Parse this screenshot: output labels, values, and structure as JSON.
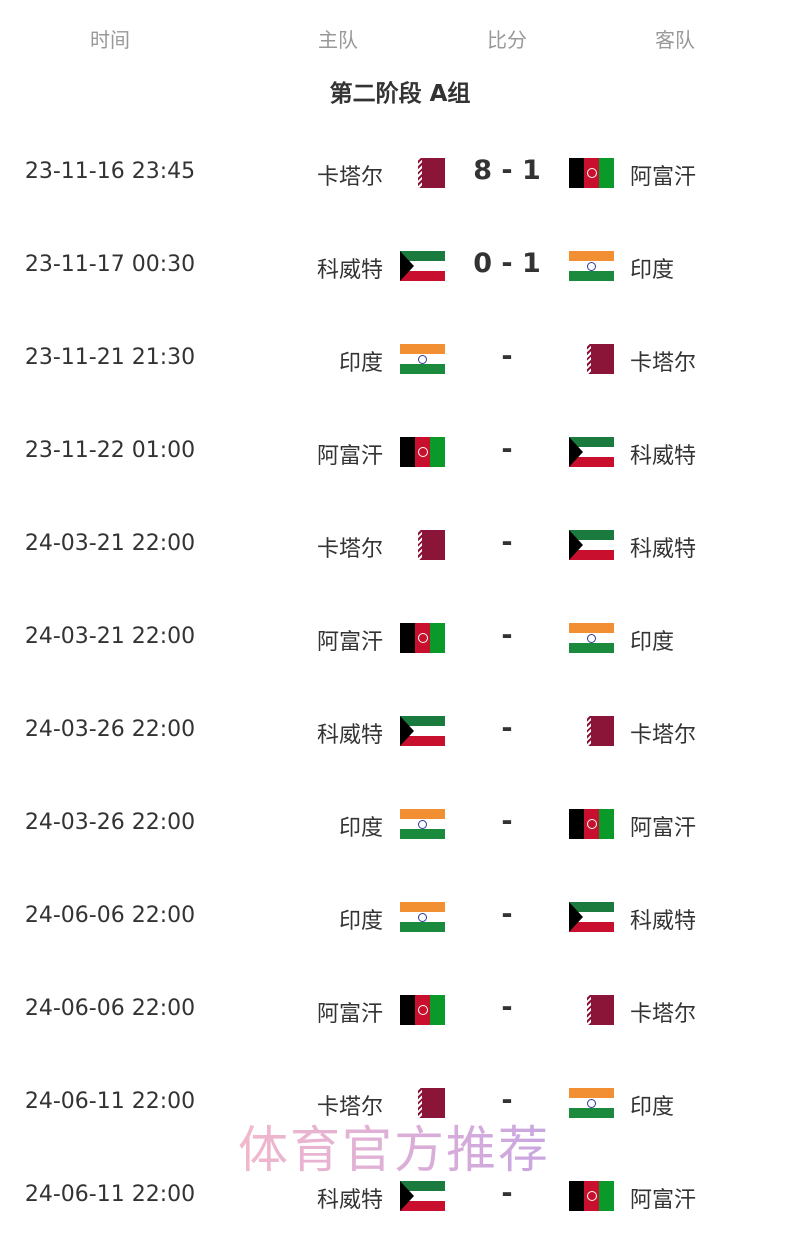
{
  "headers": {
    "time": "时间",
    "home": "主队",
    "score": "比分",
    "away": "客队"
  },
  "group_title": "第二阶段 A组",
  "flag_colors": {
    "qatar": "#8a1538",
    "afghanistan": [
      "#000000",
      "#c8102e",
      "#0a9a2a"
    ],
    "kuwait": [
      "#1b7a3d",
      "#ffffff",
      "#c8102e",
      "#000000"
    ],
    "india": [
      "#f28f33",
      "#ffffff",
      "#1c8a3c"
    ]
  },
  "matches": [
    {
      "time": "23-11-16 23:45",
      "home": "卡塔尔",
      "home_flag": "qat",
      "score": "8 - 1",
      "away": "阿富汗",
      "away_flag": "afg"
    },
    {
      "time": "23-11-17 00:30",
      "home": "科威特",
      "home_flag": "kuw",
      "score": "0 - 1",
      "away": "印度",
      "away_flag": "ind"
    },
    {
      "time": "23-11-21 21:30",
      "home": "印度",
      "home_flag": "ind",
      "score": "-",
      "away": "卡塔尔",
      "away_flag": "qat"
    },
    {
      "time": "23-11-22 01:00",
      "home": "阿富汗",
      "home_flag": "afg",
      "score": "-",
      "away": "科威特",
      "away_flag": "kuw"
    },
    {
      "time": "24-03-21 22:00",
      "home": "卡塔尔",
      "home_flag": "qat",
      "score": "-",
      "away": "科威特",
      "away_flag": "kuw"
    },
    {
      "time": "24-03-21 22:00",
      "home": "阿富汗",
      "home_flag": "afg",
      "score": "-",
      "away": "印度",
      "away_flag": "ind"
    },
    {
      "time": "24-03-26 22:00",
      "home": "科威特",
      "home_flag": "kuw",
      "score": "-",
      "away": "卡塔尔",
      "away_flag": "qat"
    },
    {
      "time": "24-03-26 22:00",
      "home": "印度",
      "home_flag": "ind",
      "score": "-",
      "away": "阿富汗",
      "away_flag": "afg"
    },
    {
      "time": "24-06-06 22:00",
      "home": "印度",
      "home_flag": "ind",
      "score": "-",
      "away": "科威特",
      "away_flag": "kuw"
    },
    {
      "time": "24-06-06 22:00",
      "home": "阿富汗",
      "home_flag": "afg",
      "score": "-",
      "away": "卡塔尔",
      "away_flag": "qat"
    },
    {
      "time": "24-06-11 22:00",
      "home": "卡塔尔",
      "home_flag": "qat",
      "score": "-",
      "away": "印度",
      "away_flag": "ind"
    },
    {
      "time": "24-06-11 22:00",
      "home": "科威特",
      "home_flag": "kuw",
      "score": "-",
      "away": "阿富汗",
      "away_flag": "afg"
    }
  ],
  "watermark": "体育官方推荐"
}
